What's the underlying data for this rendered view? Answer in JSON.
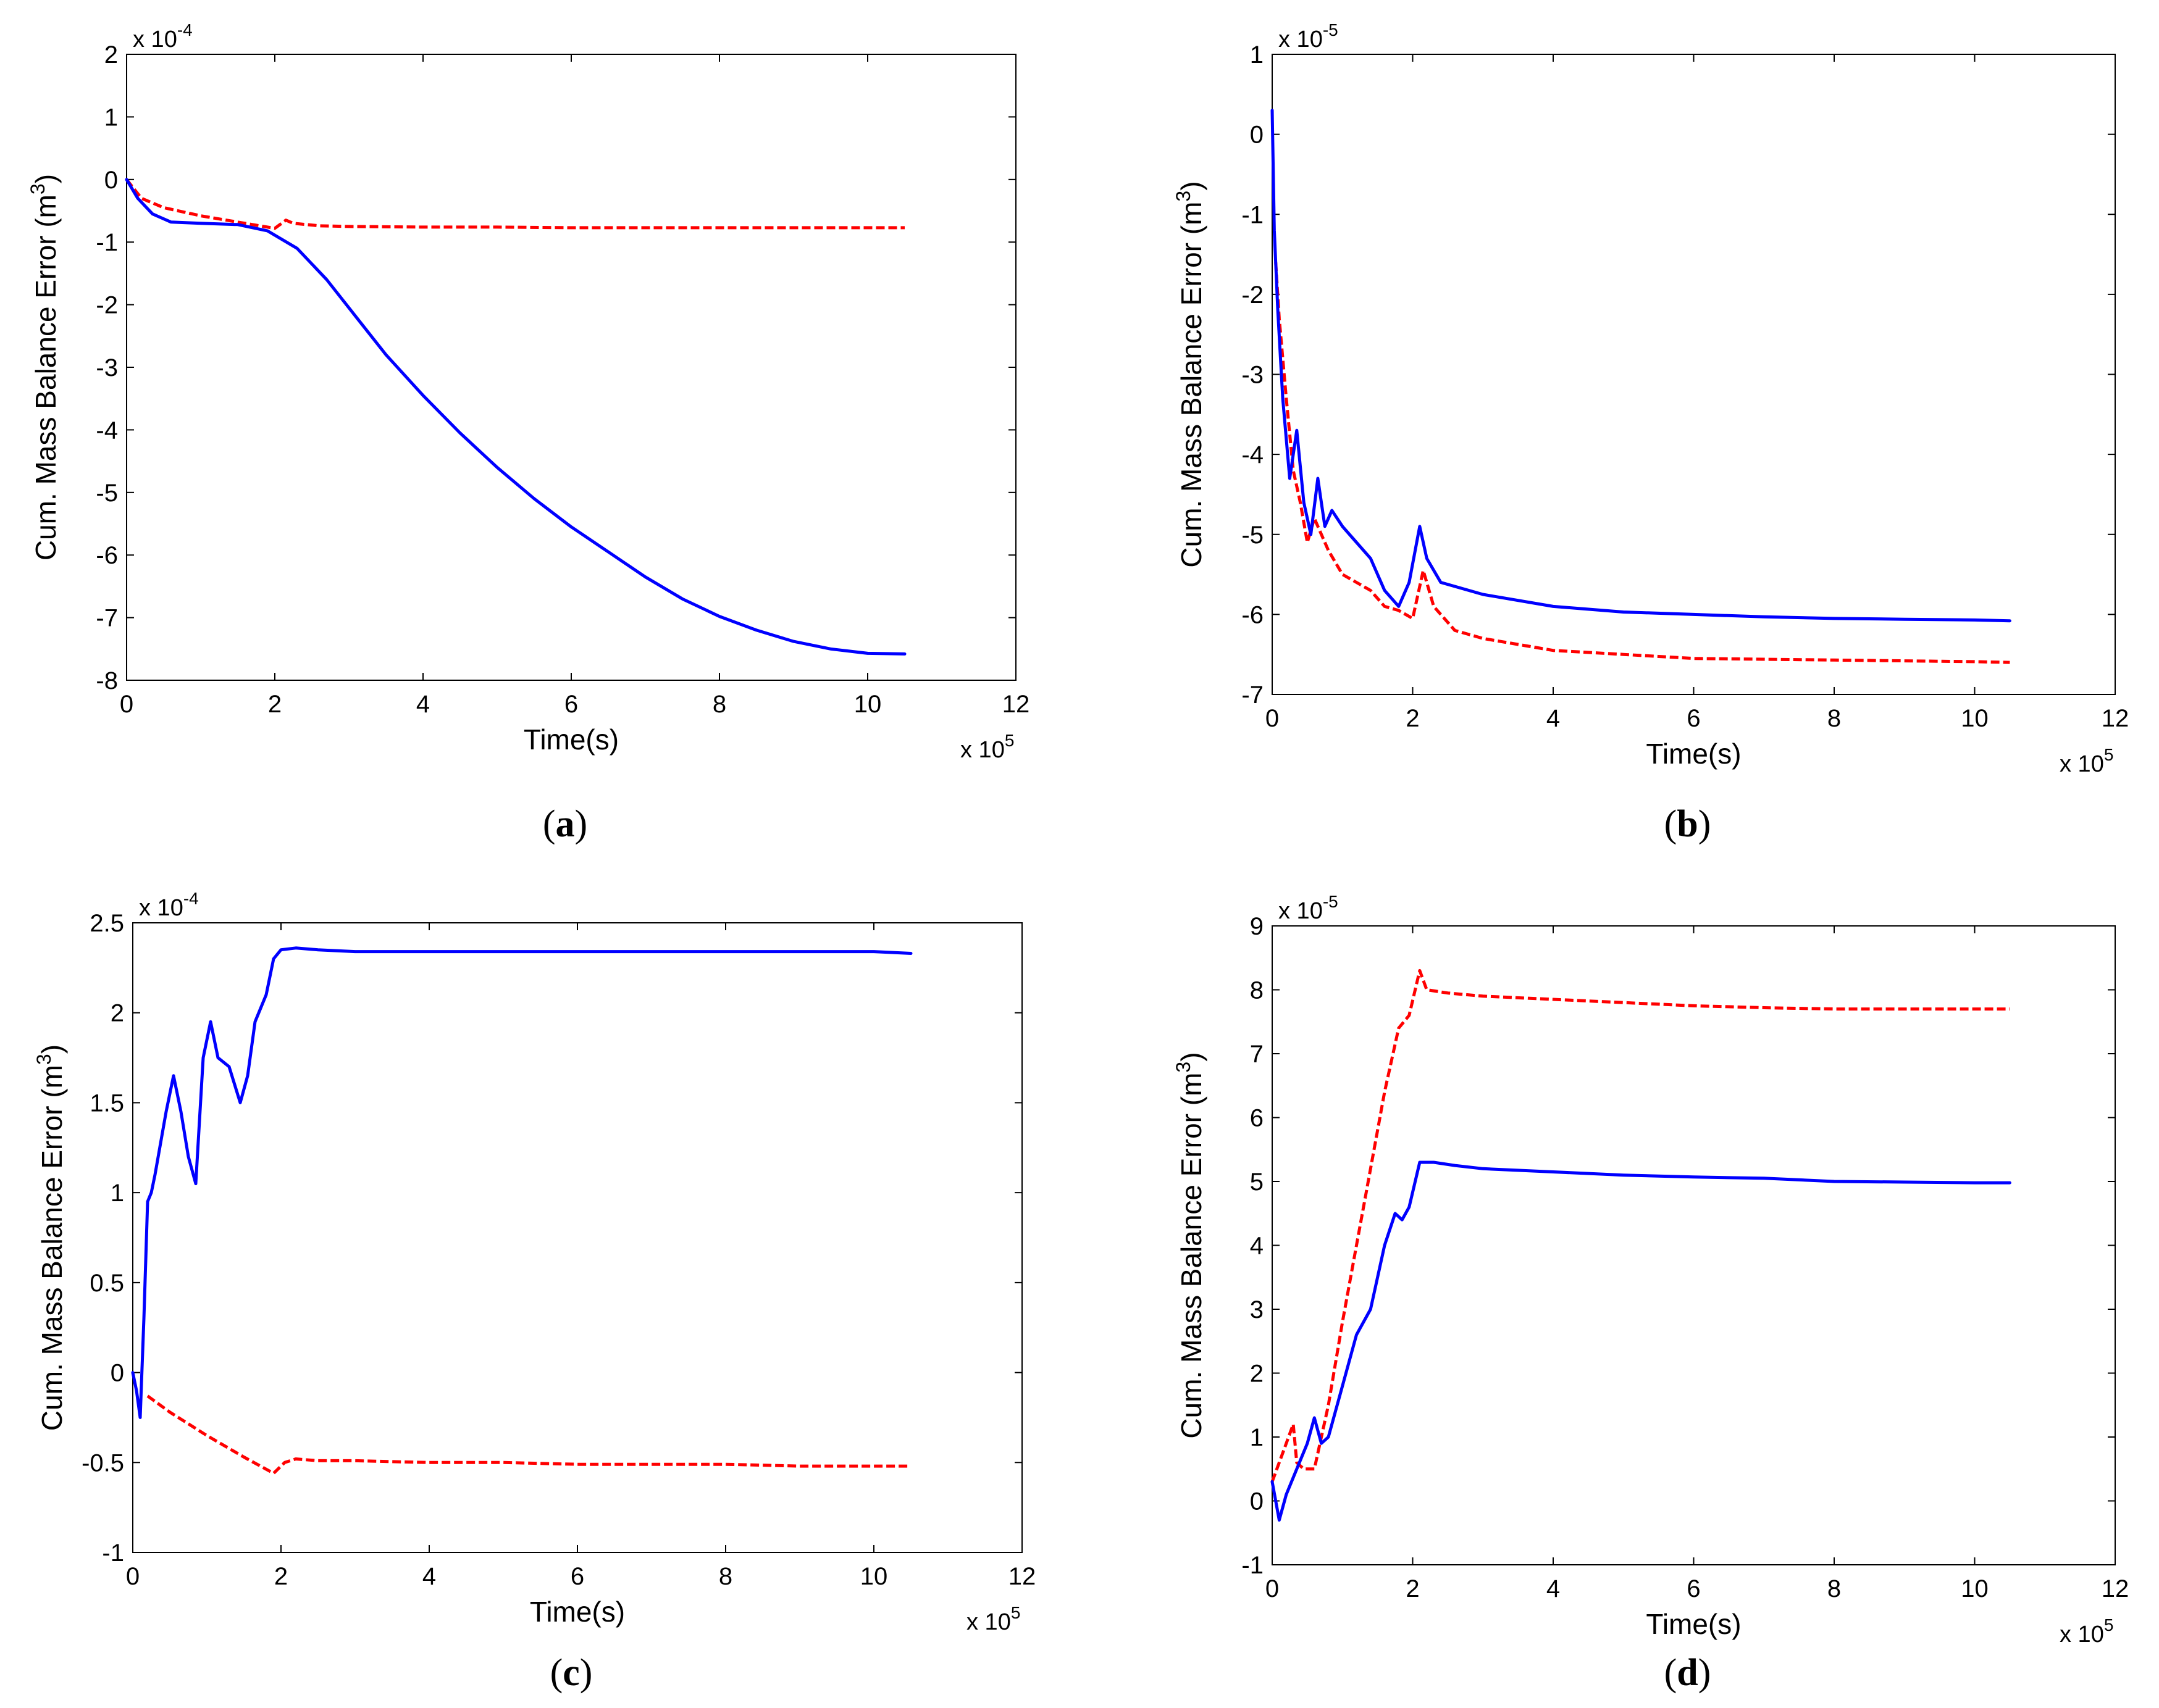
{
  "chart_data": [
    {
      "type": "line",
      "panel": "(a)",
      "panel_letter": "a",
      "xlabel": "Time(s)",
      "ylabel": "Cum. Mass Balance Error (m3)",
      "ylabel_base": "Cum. Mass Balance Error (m",
      "ylabel_sup": "3",
      "ylabel_tail": ")",
      "xlim": [
        0,
        12
      ],
      "ylim": [
        -8,
        2
      ],
      "xticks": [
        "0",
        "2",
        "4",
        "6",
        "8",
        "10",
        "12"
      ],
      "yticks": [
        "-8",
        "-7",
        "-6",
        "-5",
        "-4",
        "-3",
        "-2",
        "-1",
        "0",
        "1",
        "2"
      ],
      "x_multiplier": {
        "base": "x 10",
        "exp": "5"
      },
      "y_multiplier": {
        "base": "x 10",
        "exp": "-4"
      },
      "series": [
        {
          "name": "solid",
          "color": "#0000ff",
          "dash": "solid",
          "x": [
            0,
            0.15,
            0.35,
            0.6,
            1.0,
            1.5,
            1.9,
            2.3,
            2.7,
            3.1,
            3.5,
            4.0,
            4.5,
            5.0,
            5.5,
            6.0,
            6.5,
            7.0,
            7.5,
            8.0,
            8.5,
            9.0,
            9.5,
            10.0,
            10.5
          ],
          "y": [
            0,
            -0.3,
            -0.55,
            -0.68,
            -0.7,
            -0.72,
            -0.82,
            -1.1,
            -1.6,
            -2.2,
            -2.8,
            -3.45,
            -4.05,
            -4.6,
            -5.1,
            -5.55,
            -5.95,
            -6.35,
            -6.7,
            -6.98,
            -7.2,
            -7.38,
            -7.5,
            -7.57,
            -7.58
          ]
        },
        {
          "name": "dashed",
          "color": "#ff0000",
          "dash": "dashed",
          "x": [
            0,
            0.2,
            0.5,
            1.0,
            1.5,
            2.0,
            2.15,
            2.25,
            2.6,
            3.0,
            4.0,
            5.0,
            6.0,
            7.0,
            8.0,
            9.0,
            10.0,
            10.5
          ],
          "y": [
            0,
            -0.3,
            -0.45,
            -0.58,
            -0.68,
            -0.78,
            -0.65,
            -0.7,
            -0.74,
            -0.75,
            -0.76,
            -0.76,
            -0.77,
            -0.77,
            -0.77,
            -0.77,
            -0.77,
            -0.77
          ]
        }
      ]
    },
    {
      "type": "line",
      "panel": "(b)",
      "panel_letter": "b",
      "xlabel": "Time(s)",
      "ylabel": "Cum. Mass Balance Error (m3)",
      "ylabel_base": "Cum. Mass Balance Error (m",
      "ylabel_sup": "3",
      "ylabel_tail": ")",
      "xlim": [
        0,
        12
      ],
      "ylim": [
        -7,
        1
      ],
      "xticks": [
        "0",
        "2",
        "4",
        "6",
        "8",
        "10",
        "12"
      ],
      "yticks": [
        "-7",
        "-6",
        "-5",
        "-4",
        "-3",
        "-2",
        "-1",
        "0",
        "1"
      ],
      "x_multiplier": {
        "base": "x 10",
        "exp": "5"
      },
      "y_multiplier": {
        "base": "x 10",
        "exp": "-5"
      },
      "series": [
        {
          "name": "solid",
          "color": "#0000ff",
          "dash": "solid",
          "x": [
            0,
            0.03,
            0.08,
            0.15,
            0.25,
            0.35,
            0.45,
            0.55,
            0.65,
            0.75,
            0.85,
            1.0,
            1.2,
            1.4,
            1.6,
            1.8,
            1.95,
            2.1,
            2.2,
            2.4,
            3.0,
            4.0,
            5.0,
            6.0,
            7.0,
            8.0,
            9.0,
            10.0,
            10.5
          ],
          "y": [
            0.3,
            -1.2,
            -2.2,
            -3.3,
            -4.3,
            -3.7,
            -4.6,
            -5.0,
            -4.3,
            -4.9,
            -4.7,
            -4.9,
            -5.1,
            -5.3,
            -5.7,
            -5.9,
            -5.6,
            -4.9,
            -5.3,
            -5.6,
            -5.75,
            -5.9,
            -5.97,
            -6.0,
            -6.03,
            -6.05,
            -6.06,
            -6.07,
            -6.08
          ]
        },
        {
          "name": "dashed",
          "color": "#ff0000",
          "dash": "dashed",
          "x": [
            0.05,
            0.1,
            0.2,
            0.3,
            0.4,
            0.5,
            0.6,
            0.8,
            1.0,
            1.2,
            1.4,
            1.6,
            1.8,
            2.0,
            2.15,
            2.3,
            2.6,
            3.0,
            4.0,
            5.0,
            6.0,
            7.0,
            8.0,
            9.0,
            10.0,
            10.5
          ],
          "y": [
            -1.6,
            -2.3,
            -3.3,
            -4.2,
            -4.6,
            -5.1,
            -4.8,
            -5.2,
            -5.5,
            -5.6,
            -5.7,
            -5.9,
            -5.95,
            -6.05,
            -5.45,
            -5.9,
            -6.2,
            -6.3,
            -6.45,
            -6.5,
            -6.55,
            -6.56,
            -6.57,
            -6.58,
            -6.59,
            -6.6
          ]
        }
      ]
    },
    {
      "type": "line",
      "panel": "(c)",
      "panel_letter": "c",
      "xlabel": "Time(s)",
      "ylabel": "Cum. Mass Balance Error (m3)",
      "ylabel_base": "Cum. Mass Balance Error (m",
      "ylabel_sup": "3",
      "ylabel_tail": ")",
      "xlim": [
        0,
        12
      ],
      "ylim": [
        -1,
        2.5
      ],
      "xticks": [
        "0",
        "2",
        "4",
        "6",
        "8",
        "10",
        "12"
      ],
      "yticks": [
        "-1",
        "-0.5",
        "0",
        "0.5",
        "1",
        "1.5",
        "2",
        "2.5"
      ],
      "x_multiplier": {
        "base": "x 10",
        "exp": "5"
      },
      "y_multiplier": {
        "base": "x 10",
        "exp": "-4"
      },
      "series": [
        {
          "name": "solid",
          "color": "#0000ff",
          "dash": "solid",
          "x": [
            0,
            0.05,
            0.1,
            0.15,
            0.2,
            0.25,
            0.3,
            0.45,
            0.55,
            0.65,
            0.75,
            0.85,
            0.95,
            1.05,
            1.15,
            1.3,
            1.45,
            1.55,
            1.65,
            1.8,
            1.9,
            2.0,
            2.2,
            2.5,
            3.0,
            4.0,
            5.0,
            6.0,
            7.0,
            8.0,
            9.0,
            10.0,
            10.5
          ],
          "y": [
            0,
            -0.1,
            -0.25,
            0.3,
            0.95,
            1.0,
            1.1,
            1.45,
            1.65,
            1.45,
            1.2,
            1.05,
            1.75,
            1.95,
            1.75,
            1.7,
            1.5,
            1.65,
            1.95,
            2.1,
            2.3,
            2.35,
            2.36,
            2.35,
            2.34,
            2.34,
            2.34,
            2.34,
            2.34,
            2.34,
            2.34,
            2.34,
            2.33
          ]
        },
        {
          "name": "dashed",
          "color": "#ff0000",
          "dash": "dashed",
          "x": [
            0.2,
            0.5,
            1.0,
            1.5,
            1.9,
            2.05,
            2.2,
            2.5,
            3.0,
            4.0,
            5.0,
            6.0,
            7.0,
            8.0,
            9.0,
            10.0,
            10.5
          ],
          "y": [
            -0.13,
            -0.22,
            -0.35,
            -0.47,
            -0.56,
            -0.5,
            -0.48,
            -0.49,
            -0.49,
            -0.5,
            -0.5,
            -0.51,
            -0.51,
            -0.51,
            -0.52,
            -0.52,
            -0.52
          ]
        }
      ]
    },
    {
      "type": "line",
      "panel": "(d)",
      "panel_letter": "d",
      "xlabel": "Time(s)",
      "ylabel": "Cum. Mass Balance Error (m3)",
      "ylabel_base": "Cum. Mass Balance Error (m",
      "ylabel_sup": "3",
      "ylabel_tail": ")",
      "xlim": [
        0,
        12
      ],
      "ylim": [
        -1,
        9
      ],
      "xticks": [
        "0",
        "2",
        "4",
        "6",
        "8",
        "10",
        "12"
      ],
      "yticks": [
        "-1",
        "0",
        "1",
        "2",
        "3",
        "4",
        "5",
        "6",
        "7",
        "8",
        "9"
      ],
      "x_multiplier": {
        "base": "x 10",
        "exp": "5"
      },
      "y_multiplier": {
        "base": "x 10",
        "exp": "-5"
      },
      "series": [
        {
          "name": "solid",
          "color": "#0000ff",
          "dash": "solid",
          "x": [
            0,
            0.1,
            0.2,
            0.35,
            0.5,
            0.6,
            0.7,
            0.8,
            1.0,
            1.2,
            1.4,
            1.6,
            1.75,
            1.85,
            1.95,
            2.1,
            2.3,
            2.6,
            3.0,
            4.0,
            5.0,
            6.0,
            7.0,
            8.0,
            9.0,
            10.0,
            10.5
          ],
          "y": [
            0.3,
            -0.3,
            0.1,
            0.5,
            0.9,
            1.3,
            0.9,
            1.0,
            1.8,
            2.6,
            3.0,
            4.0,
            4.5,
            4.4,
            4.6,
            5.3,
            5.3,
            5.25,
            5.2,
            5.15,
            5.1,
            5.07,
            5.05,
            5.0,
            4.99,
            4.98,
            4.98
          ]
        },
        {
          "name": "dashed",
          "color": "#ff0000",
          "dash": "dashed",
          "x": [
            0,
            0.1,
            0.2,
            0.3,
            0.35,
            0.45,
            0.6,
            0.8,
            1.0,
            1.2,
            1.4,
            1.6,
            1.8,
            1.95,
            2.1,
            2.2,
            2.5,
            3.0,
            4.0,
            5.0,
            6.0,
            7.0,
            8.0,
            9.0,
            10.0,
            10.5
          ],
          "y": [
            0.3,
            0.6,
            0.9,
            1.2,
            0.6,
            0.5,
            0.5,
            1.5,
            2.8,
            4.0,
            5.2,
            6.4,
            7.4,
            7.6,
            8.3,
            8.0,
            7.95,
            7.9,
            7.85,
            7.8,
            7.75,
            7.72,
            7.7,
            7.7,
            7.7,
            7.7
          ]
        }
      ]
    }
  ]
}
